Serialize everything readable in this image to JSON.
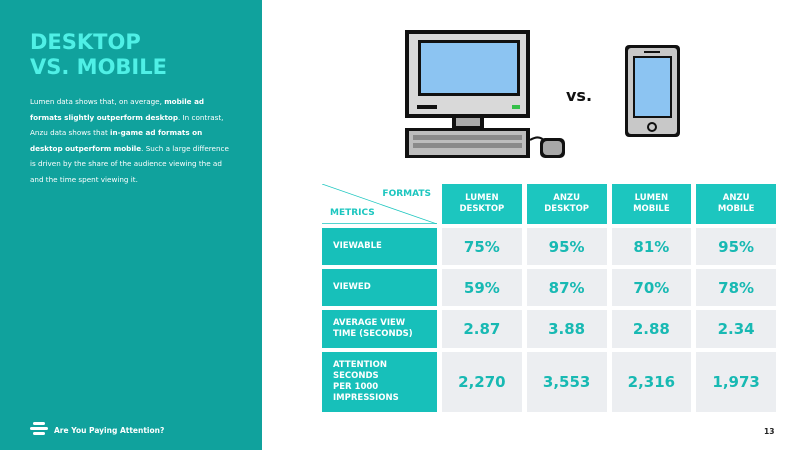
{
  "sidebar": {
    "title_lines": [
      "DESKTOP",
      "VS. MOBILE"
    ],
    "paragraph": [
      {
        "text": "Lumen data shows that, on average, ",
        "bold": false
      },
      {
        "text": "mobile ad formats slightly outperform desktop",
        "bold": true
      },
      {
        "text": ". In contrast, Anzu data shows that ",
        "bold": false
      },
      {
        "text": "in-game ad formats on desktop outperform mobile",
        "bold": true
      },
      {
        "text": ". Such a large difference is driven by the share of the audience viewing the ad and the time spent viewing it.",
        "bold": false
      }
    ]
  },
  "vs_label": "vs.",
  "table": {
    "corner": {
      "columns_label": "FORMATS",
      "rows_label": "METRICS"
    },
    "columns": [
      [
        "LUMEN",
        "DESKTOP"
      ],
      [
        "ANZU",
        "DESKTOP"
      ],
      [
        "LUMEN",
        "MOBILE"
      ],
      [
        "ANZU",
        "MOBILE"
      ]
    ],
    "rows": [
      {
        "label": [
          "VIEWABLE"
        ],
        "cells": [
          "75%",
          "95%",
          "81%",
          "95%"
        ]
      },
      {
        "label": [
          "VIEWED"
        ],
        "cells": [
          "59%",
          "87%",
          "70%",
          "78%"
        ]
      },
      {
        "label": [
          "AVERAGE VIEW",
          "TIME (SECONDS)"
        ],
        "cells": [
          "2.87",
          "3.88",
          "2.88",
          "2.34"
        ]
      },
      {
        "label": [
          "ATTENTION",
          "SECONDS",
          "PER 1000",
          "IMPRESSIONS"
        ],
        "cells": [
          "2,270",
          "3,553",
          "2,316",
          "1,973"
        ]
      }
    ]
  },
  "footer": {
    "brand": "Are You Paying Attention?",
    "page": "13"
  }
}
